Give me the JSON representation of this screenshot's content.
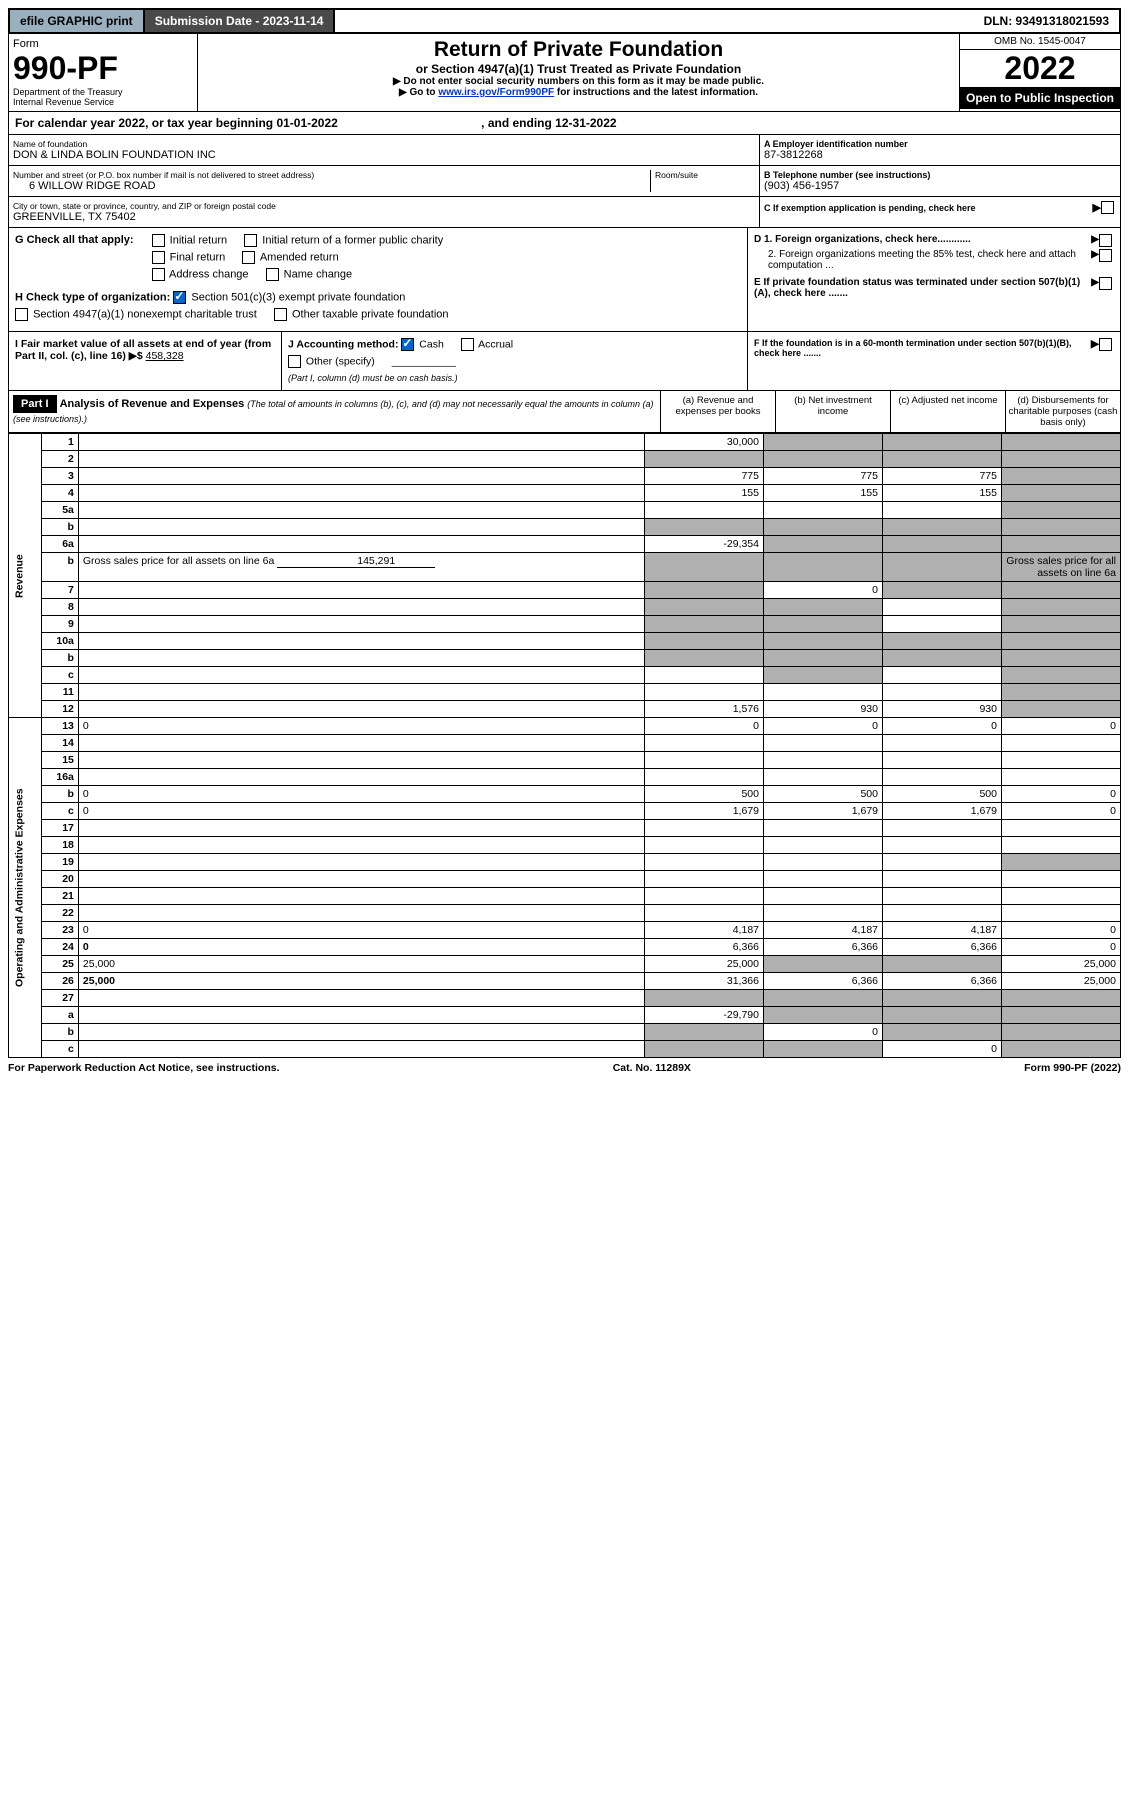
{
  "topbar": {
    "efile": "efile GRAPHIC print",
    "submission_label": "Submission Date - 2023-11-14",
    "dln": "DLN: 93491318021593"
  },
  "header": {
    "form_word": "Form",
    "form_number": "990-PF",
    "dept": "Department of the Treasury",
    "irs": "Internal Revenue Service",
    "title": "Return of Private Foundation",
    "subtitle": "or Section 4947(a)(1) Trust Treated as Private Foundation",
    "note1": "▶ Do not enter social security numbers on this form as it may be made public.",
    "note2_pre": "▶ Go to ",
    "note2_link": "www.irs.gov/Form990PF",
    "note2_post": " for instructions and the latest information.",
    "omb": "OMB No. 1545-0047",
    "year": "2022",
    "inspection": "Open to Public Inspection"
  },
  "calendar": {
    "line": "For calendar year 2022, or tax year beginning 01-01-2022",
    "ending": ", and ending 12-31-2022"
  },
  "ident": {
    "name_label": "Name of foundation",
    "name": "DON & LINDA BOLIN FOUNDATION INC",
    "street_label": "Number and street (or P.O. box number if mail is not delivered to street address)",
    "street": "6 WILLOW RIDGE ROAD",
    "room_label": "Room/suite",
    "city_label": "City or town, state or province, country, and ZIP or foreign postal code",
    "city": "GREENVILLE, TX  75402",
    "ein_label": "A Employer identification number",
    "ein": "87-3812268",
    "phone_label": "B Telephone number (see instructions)",
    "phone": "(903) 456-1957",
    "c_label": "C If exemption application is pending, check here",
    "d1": "D 1. Foreign organizations, check here............",
    "d2": "2. Foreign organizations meeting the 85% test, check here and attach computation ...",
    "e": "E  If private foundation status was terminated under section 507(b)(1)(A), check here .......",
    "f": "F  If the foundation is in a 60-month termination under section 507(b)(1)(B), check here ......."
  },
  "g": {
    "label": "G Check all that apply:",
    "opts": [
      "Initial return",
      "Initial return of a former public charity",
      "Final return",
      "Amended return",
      "Address change",
      "Name change"
    ]
  },
  "h": {
    "label": "H Check type of organization:",
    "o1": "Section 501(c)(3) exempt private foundation",
    "o2": "Section 4947(a)(1) nonexempt charitable trust",
    "o3": "Other taxable private foundation"
  },
  "i": {
    "label": "I Fair market value of all assets at end of year (from Part II, col. (c), line 16) ▶$",
    "value": "458,328"
  },
  "j": {
    "label": "J Accounting method:",
    "cash": "Cash",
    "accrual": "Accrual",
    "other": "Other (specify)",
    "note": "(Part I, column (d) must be on cash basis.)"
  },
  "part1": {
    "tag": "Part I",
    "title": "Analysis of Revenue and Expenses",
    "title_note": " (The total of amounts in columns (b), (c), and (d) may not necessarily equal the amounts in column (a) (see instructions).)",
    "col_a": "(a)  Revenue and expenses per books",
    "col_b": "(b)  Net investment income",
    "col_c": "(c)  Adjusted net income",
    "col_d": "(d)  Disbursements for charitable purposes (cash basis only)"
  },
  "sections": {
    "revenue": "Revenue",
    "opex": "Operating and Administrative Expenses"
  },
  "rows": [
    {
      "n": "1",
      "d": "",
      "a": "30,000",
      "b": "",
      "c": "",
      "b_grey": true,
      "c_grey": true,
      "d_grey": true
    },
    {
      "n": "2",
      "d": "",
      "a": "",
      "b": "",
      "c": "",
      "a_grey": true,
      "b_grey": true,
      "c_grey": true,
      "d_grey": true,
      "bold_not": true
    },
    {
      "n": "3",
      "d": "",
      "a": "775",
      "b": "775",
      "c": "775",
      "d_grey": true
    },
    {
      "n": "4",
      "d": "",
      "a": "155",
      "b": "155",
      "c": "155",
      "d_grey": true
    },
    {
      "n": "5a",
      "d": "",
      "a": "",
      "b": "",
      "c": "",
      "d_grey": true
    },
    {
      "n": "b",
      "d": "",
      "a": "",
      "b": "",
      "c": "",
      "a_grey": true,
      "b_grey": true,
      "c_grey": true,
      "d_grey": true,
      "inset": true
    },
    {
      "n": "6a",
      "d": "",
      "a": "-29,354",
      "b": "",
      "c": "",
      "b_grey": true,
      "c_grey": true,
      "d_grey": true
    },
    {
      "n": "b",
      "d": "Gross sales price for all assets on line 6a",
      "a_inline": "145,291",
      "a_grey": true,
      "b_grey": true,
      "c_grey": true,
      "d_grey": true
    },
    {
      "n": "7",
      "d": "",
      "a": "",
      "b": "0",
      "c": "",
      "a_grey": true,
      "c_grey": true,
      "d_grey": true
    },
    {
      "n": "8",
      "d": "",
      "a": "",
      "b": "",
      "c": "",
      "a_grey": true,
      "b_grey": true,
      "d_grey": true
    },
    {
      "n": "9",
      "d": "",
      "a": "",
      "b": "",
      "c": "",
      "a_grey": true,
      "b_grey": true,
      "d_grey": true
    },
    {
      "n": "10a",
      "d": "",
      "a": "",
      "b": "",
      "c": "",
      "a_grey": true,
      "b_grey": true,
      "c_grey": true,
      "d_grey": true,
      "inset": true
    },
    {
      "n": "b",
      "d": "",
      "a": "",
      "b": "",
      "c": "",
      "a_grey": true,
      "b_grey": true,
      "c_grey": true,
      "d_grey": true,
      "inset": true
    },
    {
      "n": "c",
      "d": "",
      "a": "",
      "b": "",
      "c": "",
      "b_grey": true,
      "d_grey": true
    },
    {
      "n": "11",
      "d": "",
      "a": "",
      "b": "",
      "c": "",
      "d_grey": true
    },
    {
      "n": "12",
      "d": "",
      "a": "1,576",
      "b": "930",
      "c": "930",
      "d_grey": true,
      "bold": true
    },
    {
      "n": "13",
      "d": "0",
      "a": "0",
      "b": "0",
      "c": "0"
    },
    {
      "n": "14",
      "d": "",
      "a": "",
      "b": "",
      "c": ""
    },
    {
      "n": "15",
      "d": "",
      "a": "",
      "b": "",
      "c": ""
    },
    {
      "n": "16a",
      "d": "",
      "a": "",
      "b": "",
      "c": ""
    },
    {
      "n": "b",
      "d": "0",
      "a": "500",
      "b": "500",
      "c": "500"
    },
    {
      "n": "c",
      "d": "0",
      "a": "1,679",
      "b": "1,679",
      "c": "1,679"
    },
    {
      "n": "17",
      "d": "",
      "a": "",
      "b": "",
      "c": ""
    },
    {
      "n": "18",
      "d": "",
      "a": "",
      "b": "",
      "c": ""
    },
    {
      "n": "19",
      "d": "",
      "a": "",
      "b": "",
      "c": "",
      "d_grey": true
    },
    {
      "n": "20",
      "d": "",
      "a": "",
      "b": "",
      "c": ""
    },
    {
      "n": "21",
      "d": "",
      "a": "",
      "b": "",
      "c": ""
    },
    {
      "n": "22",
      "d": "",
      "a": "",
      "b": "",
      "c": ""
    },
    {
      "n": "23",
      "d": "0",
      "a": "4,187",
      "b": "4,187",
      "c": "4,187"
    },
    {
      "n": "24",
      "d": "0",
      "a": "6,366",
      "b": "6,366",
      "c": "6,366",
      "bold": true
    },
    {
      "n": "25",
      "d": "25,000",
      "a": "25,000",
      "b": "",
      "c": "",
      "b_grey": true,
      "c_grey": true
    },
    {
      "n": "26",
      "d": "25,000",
      "a": "31,366",
      "b": "6,366",
      "c": "6,366",
      "bold": true
    },
    {
      "n": "27",
      "d": "",
      "a": "",
      "b": "",
      "c": "",
      "a_grey": true,
      "b_grey": true,
      "c_grey": true,
      "d_grey": true
    },
    {
      "n": "a",
      "d": "",
      "a": "-29,790",
      "b": "",
      "c": "",
      "b_grey": true,
      "c_grey": true,
      "d_grey": true,
      "bold": true
    },
    {
      "n": "b",
      "d": "",
      "a": "",
      "b": "0",
      "c": "",
      "a_grey": true,
      "c_grey": true,
      "d_grey": true,
      "bold": true
    },
    {
      "n": "c",
      "d": "",
      "a": "",
      "b": "",
      "c": "0",
      "a_grey": true,
      "b_grey": true,
      "d_grey": true,
      "bold": true
    }
  ],
  "footer": {
    "left": "For Paperwork Reduction Act Notice, see instructions.",
    "mid": "Cat. No. 11289X",
    "right": "Form 990-PF (2022)"
  },
  "colors": {
    "grey_cell": "#b0b0b0",
    "topbar_btn": "#9bb0bf",
    "topbar_sub": "#4a4a4a",
    "link": "#0033cc"
  }
}
